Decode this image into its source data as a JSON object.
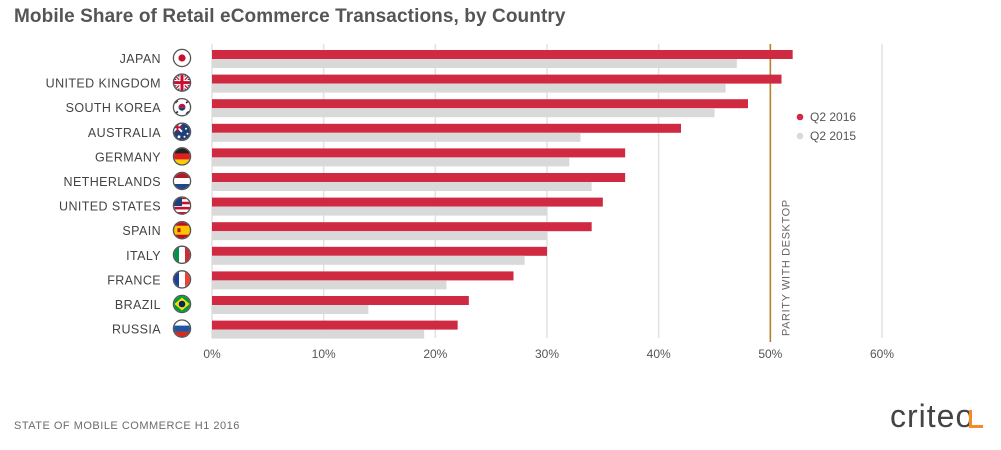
{
  "title": "Mobile Share of Retail eCommerce Transactions, by Country",
  "footer": {
    "source": "STATE OF MOBILE COMMERCE H1 2016",
    "logo": "criteo"
  },
  "colors": {
    "q2_2016": "#cf2a42",
    "q2_2015": "#d9d9d9",
    "parity_line": "#b5812a",
    "grid": "#e2e2e2"
  },
  "chart_data": {
    "type": "bar",
    "orientation": "horizontal",
    "categories": [
      "JAPAN",
      "UNITED KINGDOM",
      "SOUTH KOREA",
      "AUSTRALIA",
      "GERMANY",
      "NETHERLANDS",
      "UNITED STATES",
      "SPAIN",
      "ITALY",
      "FRANCE",
      "BRAZIL",
      "RUSSIA"
    ],
    "flags": [
      "japan-flag-icon",
      "uk-flag-icon",
      "south-korea-flag-icon",
      "australia-flag-icon",
      "germany-flag-icon",
      "netherlands-flag-icon",
      "usa-flag-icon",
      "spain-flag-icon",
      "italy-flag-icon",
      "france-flag-icon",
      "brazil-flag-icon",
      "russia-flag-icon"
    ],
    "series": [
      {
        "name": "Q2 2016",
        "values": [
          52,
          51,
          48,
          42,
          37,
          37,
          35,
          34,
          30,
          27,
          23,
          22
        ]
      },
      {
        "name": "Q2 2015",
        "values": [
          47,
          46,
          45,
          33,
          32,
          34,
          30,
          30,
          28,
          21,
          14,
          19
        ]
      }
    ],
    "x_ticks": [
      "0%",
      "10%",
      "20%",
      "30%",
      "40%",
      "50%",
      "60%"
    ],
    "xlim": [
      0,
      60
    ],
    "grid": true,
    "legend": "right",
    "annotation": {
      "value": 50,
      "label": "PARITY WITH DESKTOP"
    }
  }
}
